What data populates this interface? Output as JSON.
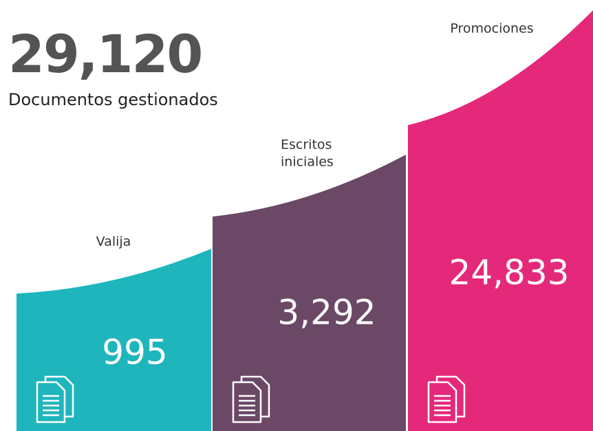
{
  "header": {
    "total": "29,120",
    "subtitle": "Documentos gestionados"
  },
  "segments": [
    {
      "label": [
        "Valija"
      ],
      "value": "995",
      "color": "#1fb5bd"
    },
    {
      "label": [
        "Escritos",
        "iniciales"
      ],
      "value": "3,292",
      "color": "#6b4866"
    },
    {
      "label": [
        "Promociones"
      ],
      "value": "24,833",
      "color": "#e4297b"
    }
  ]
}
